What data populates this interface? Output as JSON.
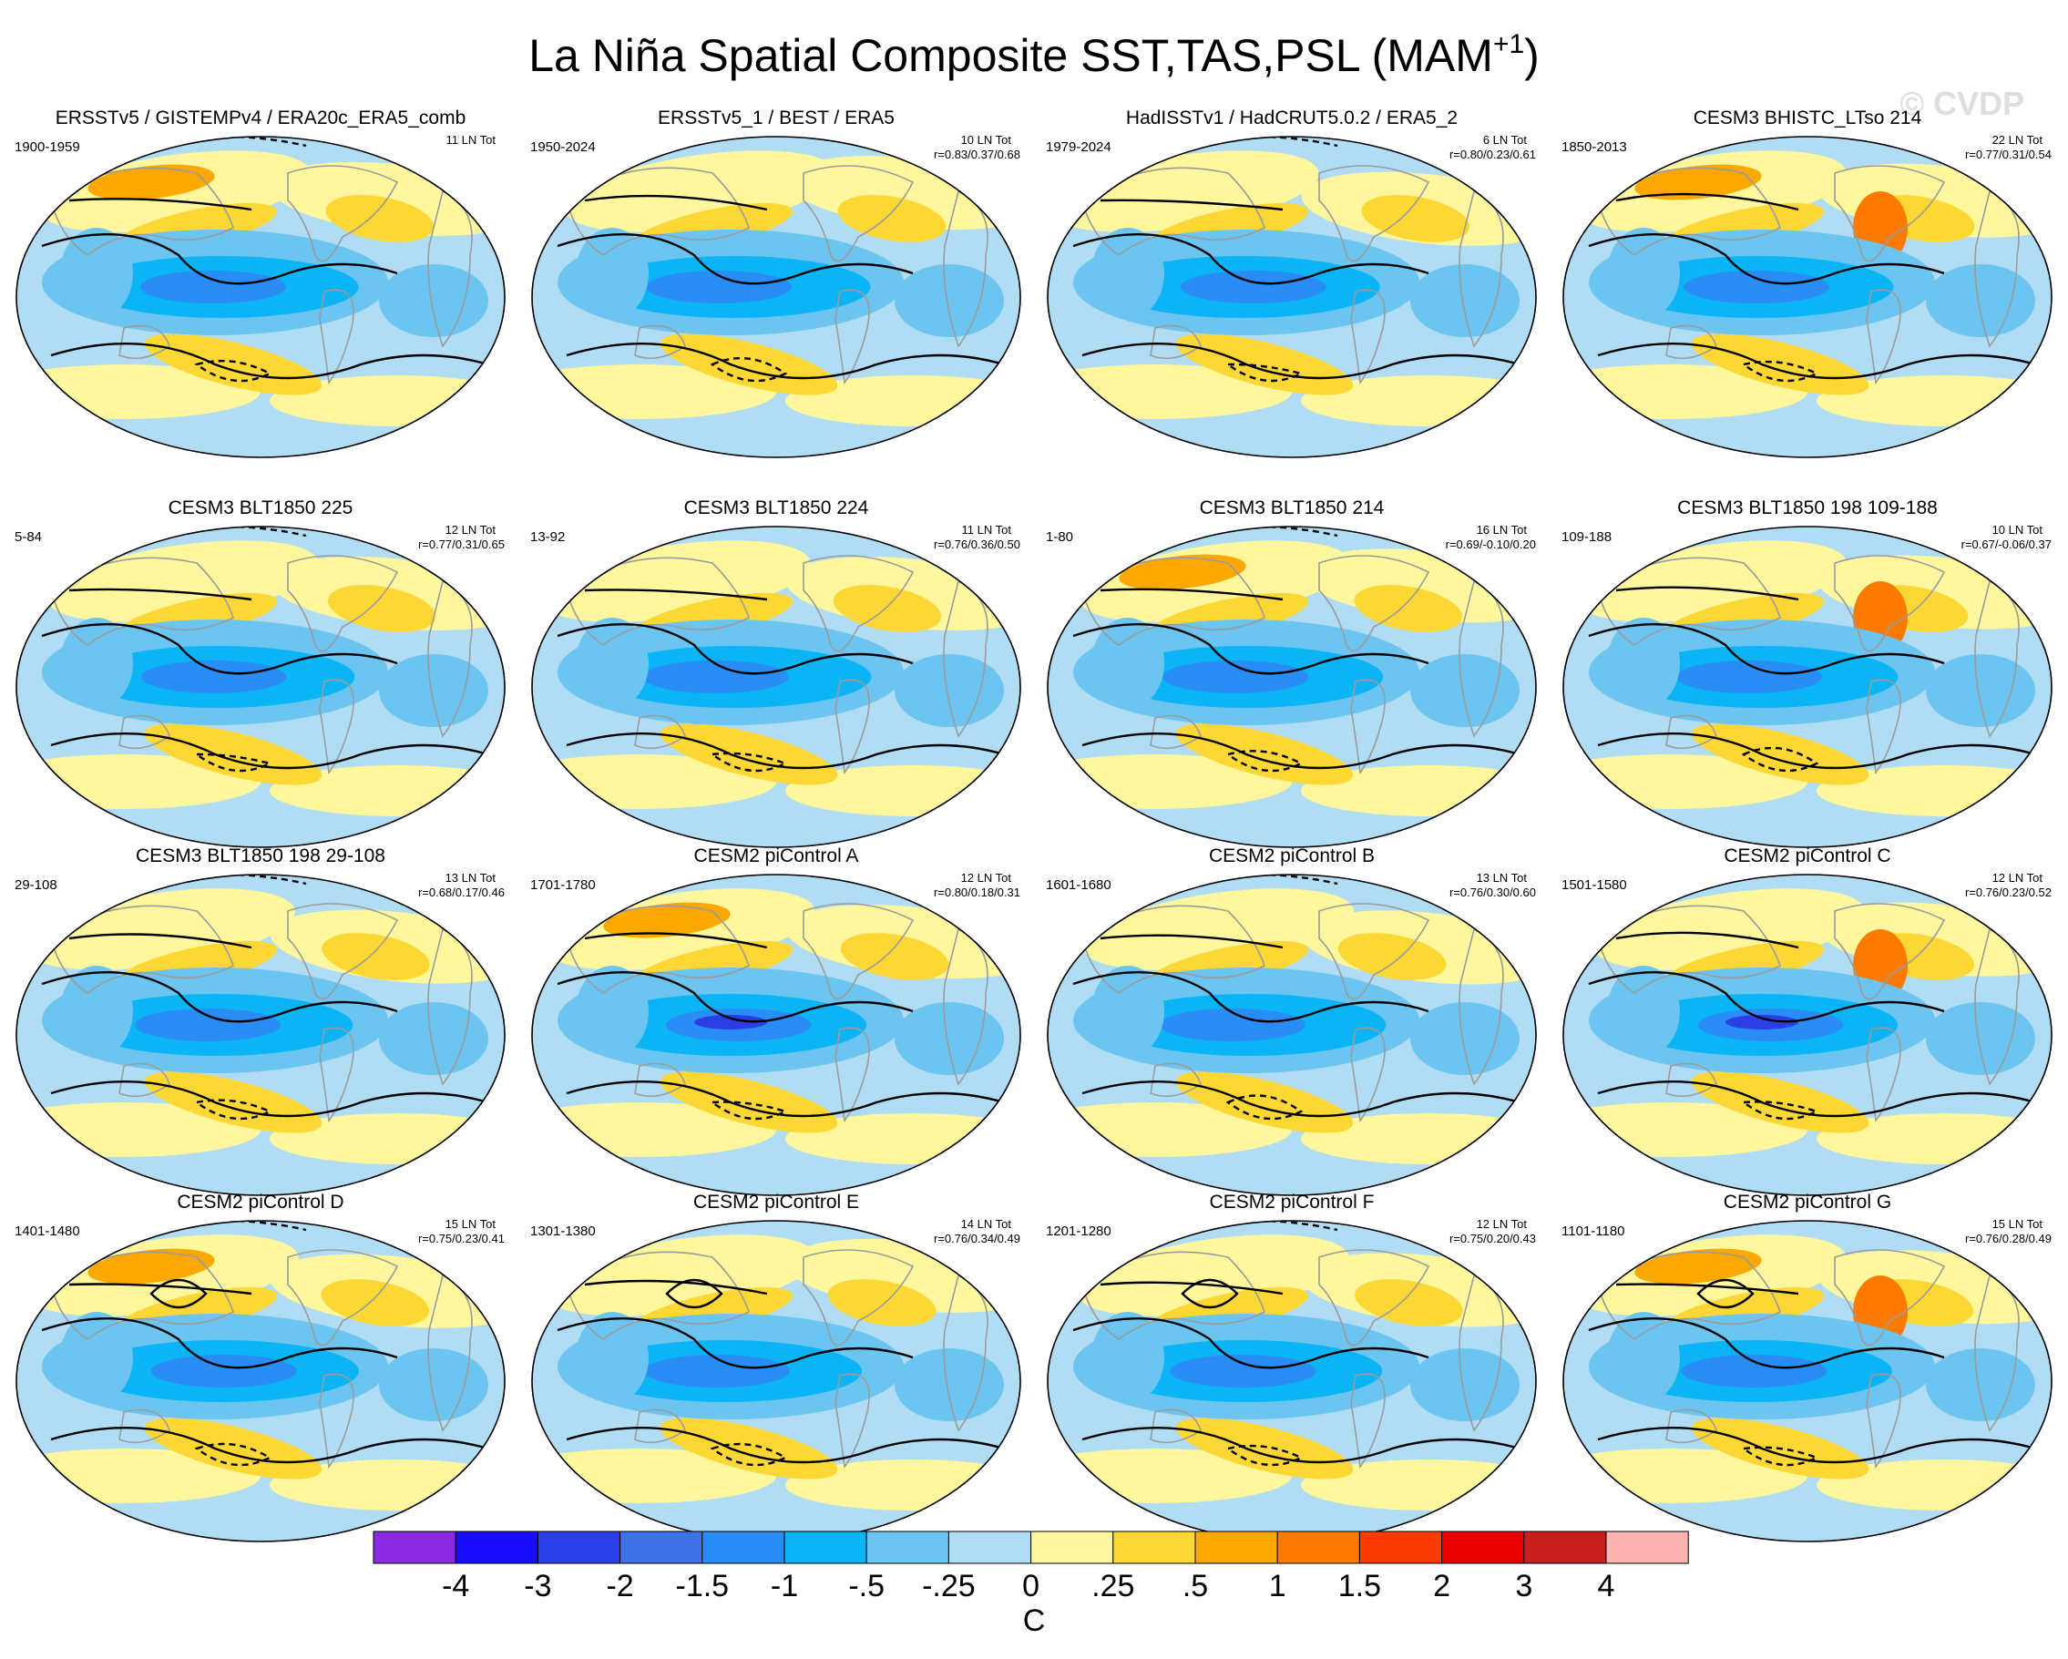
{
  "chart_data": {
    "type": "heatmap",
    "title": "La Niña Spatial Composite SST,TAS,PSL (MAM",
    "title_superscript": "+1",
    "title_suffix": ")",
    "watermark": "© CVDP",
    "projection": "robinson-like global maps (Pacific-centred)",
    "panels": [
      {
        "title": "ERSSTv5 / GISTEMPv4 / ERA20c_ERA5_comb",
        "years": "1900-1959",
        "count": "11 LN Tot",
        "stats": ""
      },
      {
        "title": "ERSSTv5_1 / BEST / ERA5",
        "years": "1950-2024",
        "count": "10 LN Tot",
        "stats": "r=0.83/0.37/0.68"
      },
      {
        "title": "HadISSTv1 / HadCRUT5.0.2 / ERA5_2",
        "years": "1979-2024",
        "count": "6 LN Tot",
        "stats": "r=0.80/0.23/0.61"
      },
      {
        "title": "CESM3 BHISTC_LTso 214",
        "years": "1850-2013",
        "count": "22 LN Tot",
        "stats": "r=0.77/0.31/0.54"
      },
      {
        "title": "CESM3 BLT1850 225",
        "years": "5-84",
        "count": "12 LN Tot",
        "stats": "r=0.77/0.31/0.65"
      },
      {
        "title": "CESM3 BLT1850 224",
        "years": "13-92",
        "count": "11 LN Tot",
        "stats": "r=0.76/0.36/0.50"
      },
      {
        "title": "CESM3 BLT1850 214",
        "years": "1-80",
        "count": "16 LN Tot",
        "stats": "r=0.69/-0.10/0.20"
      },
      {
        "title": "CESM3 BLT1850 198 109-188",
        "years": "109-188",
        "count": "10 LN Tot",
        "stats": "r=0.67/-0.06/0.37"
      },
      {
        "title": "CESM3 BLT1850 198 29-108",
        "years": "29-108",
        "count": "13 LN Tot",
        "stats": "r=0.68/0.17/0.46"
      },
      {
        "title": "CESM2 piControl A",
        "years": "1701-1780",
        "count": "12 LN Tot",
        "stats": "r=0.80/0.18/0.31"
      },
      {
        "title": "CESM2 piControl B",
        "years": "1601-1680",
        "count": "13 LN Tot",
        "stats": "r=0.76/0.30/0.60"
      },
      {
        "title": "CESM2 piControl C",
        "years": "1501-1580",
        "count": "12 LN Tot",
        "stats": "r=0.76/0.23/0.52"
      },
      {
        "title": "CESM2 piControl D",
        "years": "1401-1480",
        "count": "15 LN Tot",
        "stats": "r=0.75/0.23/0.41"
      },
      {
        "title": "CESM2 piControl E",
        "years": "1301-1380",
        "count": "14 LN Tot",
        "stats": "r=0.76/0.34/0.49"
      },
      {
        "title": "CESM2 piControl F",
        "years": "1201-1280",
        "count": "12 LN Tot",
        "stats": "r=0.75/0.20/0.43"
      },
      {
        "title": "CESM2 piControl G",
        "years": "1101-1180",
        "count": "15 LN Tot",
        "stats": "r=0.76/0.28/0.49"
      }
    ],
    "colorbar": {
      "unit": "C",
      "levels": [
        "-4",
        "-3",
        "-2",
        "-1.5",
        "-1",
        "-.5",
        "-.25",
        "0",
        ".25",
        ".5",
        "1",
        "1.5",
        "2",
        "3",
        "4"
      ],
      "colors": [
        "#8a2be2",
        "#1a0dff",
        "#2b3ee6",
        "#3d73e6",
        "#2a8cf5",
        "#0ab4f5",
        "#6cc5f0",
        "#b0dcf4",
        "#fff79e",
        "#fdd835",
        "#fca800",
        "#fc7a00",
        "#fb3a00",
        "#e60000",
        "#c81e1e",
        "#ffb4b4"
      ]
    },
    "field_colors": {
      "strong_cold": "#2a8cf5",
      "cold": "#0ab4f5",
      "cool": "#6cc5f0",
      "cool_light": "#b0dcf4",
      "warm_light": "#fff79e",
      "warm": "#fdd835",
      "hot": "#fca800",
      "hotter": "#fc7a00",
      "deep_cold": "#2b3ee6",
      "land_outline": "#9b9b9b",
      "contour": "#000000"
    }
  }
}
